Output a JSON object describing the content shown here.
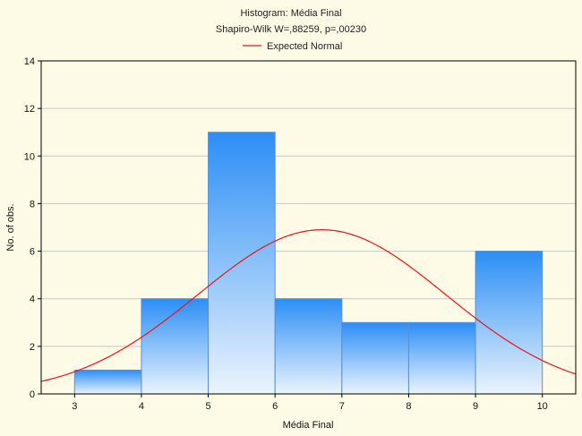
{
  "chart_data": {
    "type": "bar",
    "title": "Histogram: Média Final",
    "subtitle": "Shapiro-Wilk W=,88259, p=,00230",
    "legend": [
      {
        "name": "Expected Normal",
        "color": "#e8141b",
        "kind": "line"
      }
    ],
    "legend_position": "top-center",
    "xlabel": "Média Final",
    "ylabel": "No. of obs.",
    "bins": [
      {
        "from": 3,
        "to": 4,
        "count": 1
      },
      {
        "from": 4,
        "to": 5,
        "count": 4
      },
      {
        "from": 5,
        "to": 6,
        "count": 11
      },
      {
        "from": 6,
        "to": 7,
        "count": 4
      },
      {
        "from": 7,
        "to": 8,
        "count": 3
      },
      {
        "from": 8,
        "to": 9,
        "count": 3
      },
      {
        "from": 9,
        "to": 10,
        "count": 6
      }
    ],
    "values": [
      1,
      4,
      11,
      4,
      3,
      3,
      6
    ],
    "xlim": [
      2.5,
      10.5
    ],
    "ylim": [
      0,
      14
    ],
    "xticks": [
      "3",
      "4",
      "5",
      "6",
      "7",
      "8",
      "9",
      "10"
    ],
    "yticks": [
      "0",
      "2",
      "4",
      "6",
      "8",
      "10",
      "12",
      "14"
    ],
    "normal_curve": {
      "mean": 6.7,
      "sd": 1.85,
      "n": 32,
      "bin_width": 1
    },
    "grid": "horizontal",
    "colors": {
      "background": "#fdfae6",
      "bar_top": "#2b8ef5",
      "bar_bottom": "#ebf4fd",
      "bar_stroke": "#5a8fd0",
      "curve": "#e8141b",
      "grid": "#c8c8c8"
    }
  }
}
